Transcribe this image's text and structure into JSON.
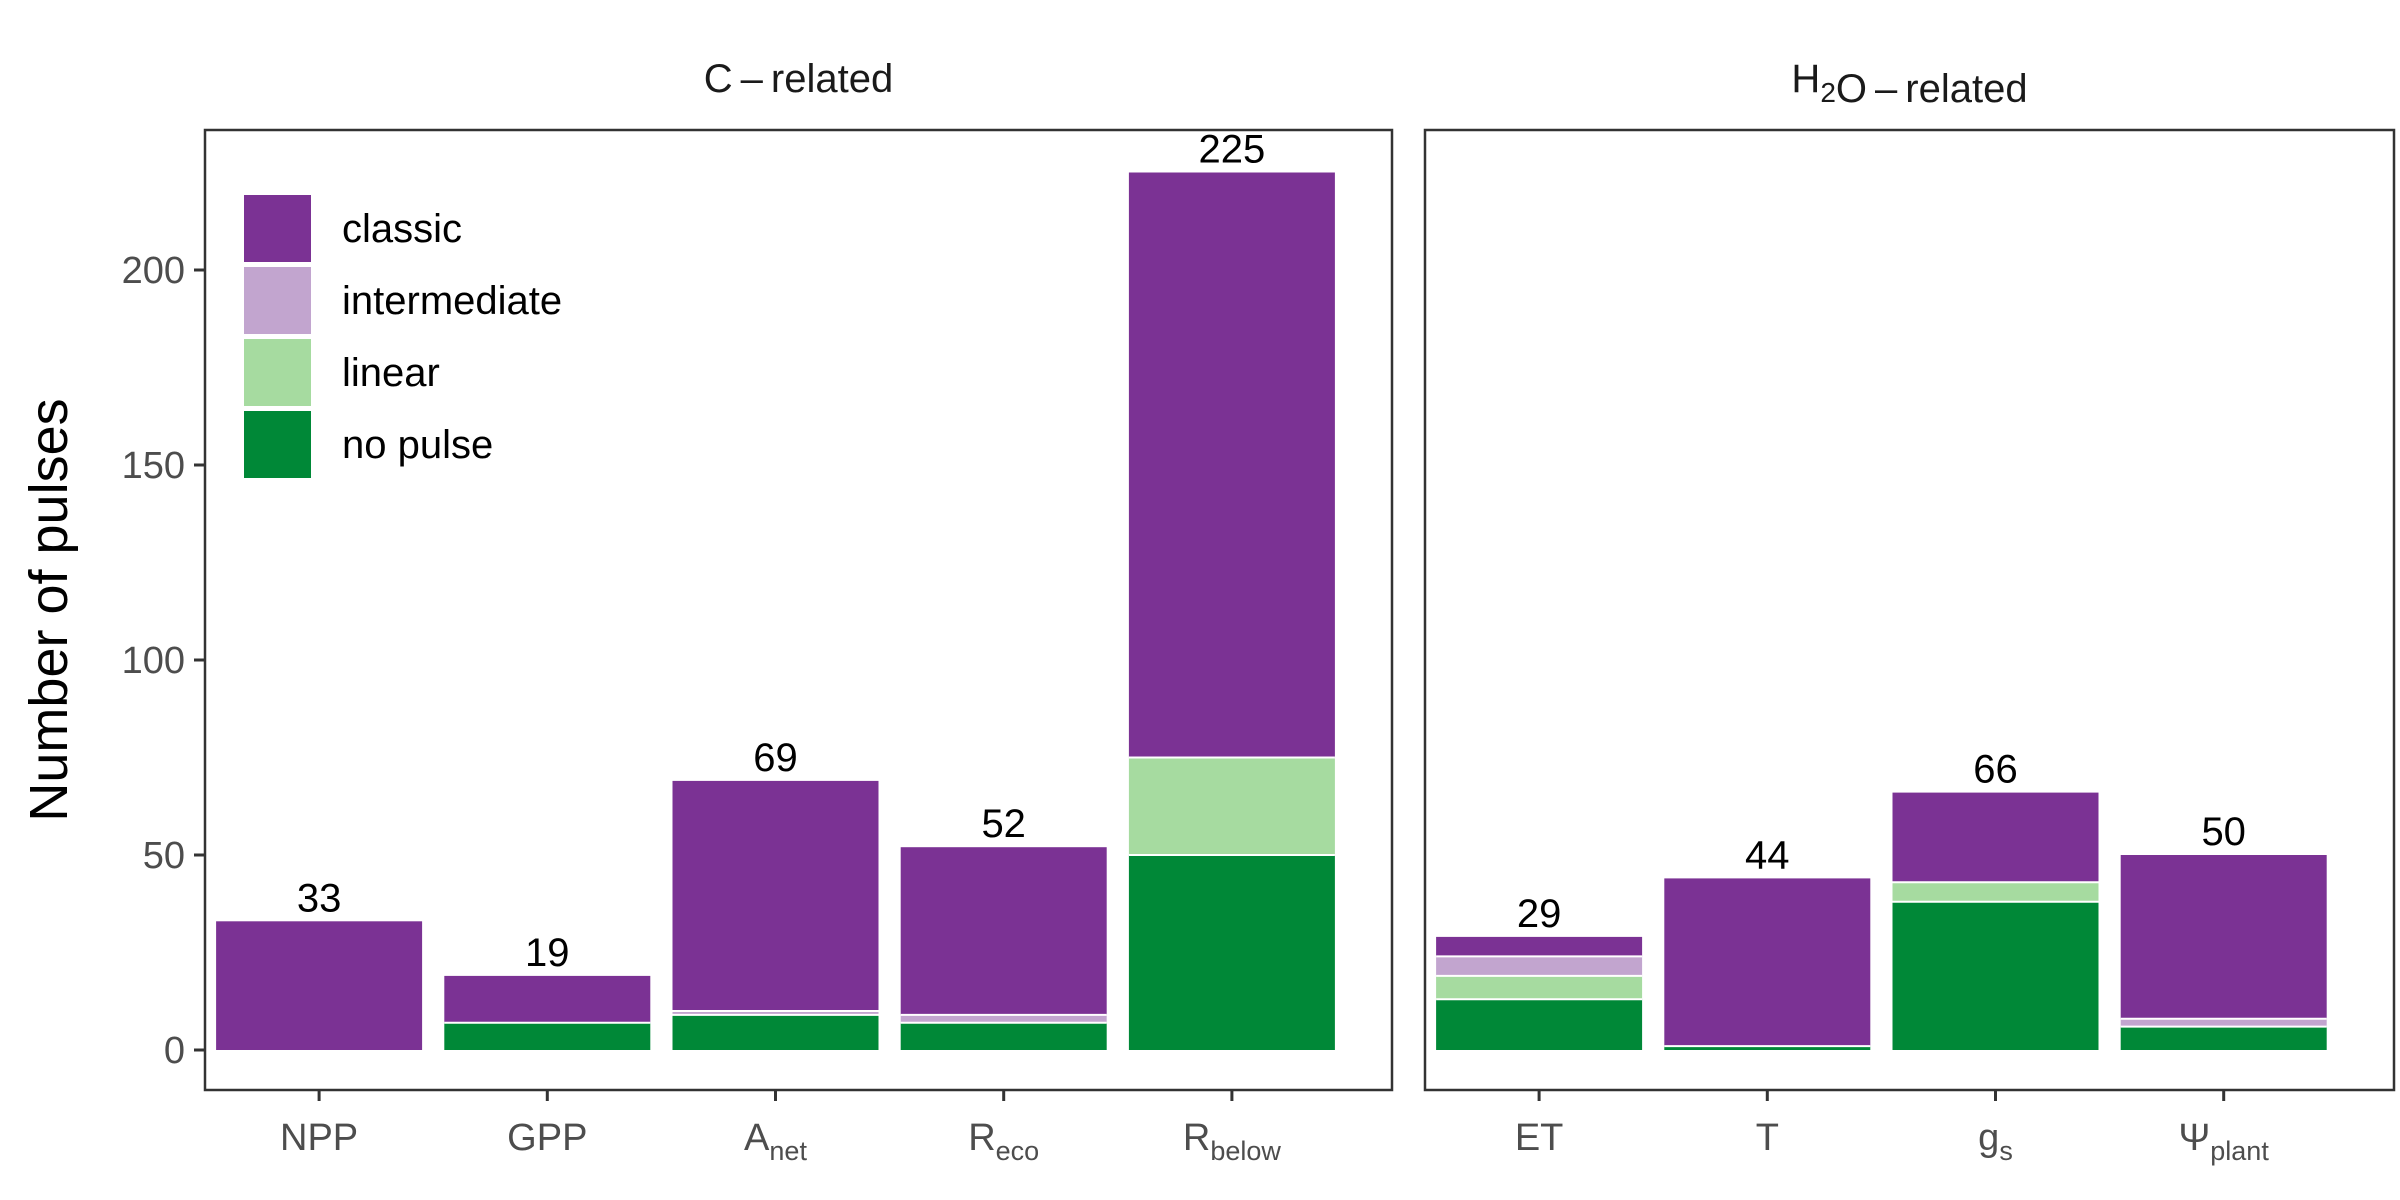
{
  "chart_data": {
    "type": "bar",
    "stacked": true,
    "ylabel": "Number of pulses",
    "ylim": [
      0,
      235
    ],
    "yticks": [
      0,
      50,
      100,
      150,
      200
    ],
    "legend_placement": "top-left",
    "grid": false,
    "stack_order": [
      "no pulse",
      "linear",
      "intermediate",
      "classic"
    ],
    "legend_entries": [
      {
        "name": "classic",
        "color": "#7b3294"
      },
      {
        "name": "intermediate",
        "color": "#c2a5cf"
      },
      {
        "name": "linear",
        "color": "#a6dba0"
      },
      {
        "name": "no pulse",
        "color": "#008837"
      }
    ],
    "facets": [
      {
        "title_parts": [
          {
            "text": "C – related",
            "sub": ""
          }
        ],
        "bars": [
          {
            "label": "NPP",
            "sub": "",
            "total": "33",
            "values": {
              "no pulse": 0,
              "linear": 0,
              "intermediate": 0,
              "classic": 33
            }
          },
          {
            "label": "GPP",
            "sub": "",
            "total": "19",
            "values": {
              "no pulse": 7,
              "linear": 0,
              "intermediate": 0,
              "classic": 12
            }
          },
          {
            "label": "A",
            "sub": "net",
            "total": "69",
            "values": {
              "no pulse": 9,
              "linear": 0,
              "intermediate": 1,
              "classic": 59
            }
          },
          {
            "label": "R",
            "sub": "eco",
            "total": "52",
            "values": {
              "no pulse": 7,
              "linear": 0,
              "intermediate": 2,
              "classic": 43
            }
          },
          {
            "label": "R",
            "sub": "below",
            "total": "225",
            "values": {
              "no pulse": 50,
              "linear": 25,
              "intermediate": 0,
              "classic": 150
            }
          }
        ]
      },
      {
        "title_parts": [
          {
            "text": "H",
            "sub": "2"
          },
          {
            "text": "O – related",
            "sub": ""
          }
        ],
        "bars": [
          {
            "label": "ET",
            "sub": "",
            "total": "29",
            "values": {
              "no pulse": 13,
              "linear": 6,
              "intermediate": 5,
              "classic": 5
            }
          },
          {
            "label": "T",
            "sub": "",
            "total": "44",
            "values": {
              "no pulse": 1,
              "linear": 0,
              "intermediate": 0,
              "classic": 43
            }
          },
          {
            "label": "g",
            "sub": "s",
            "total": "66",
            "values": {
              "no pulse": 38,
              "linear": 5,
              "intermediate": 0,
              "classic": 23
            }
          },
          {
            "label": "Ψ",
            "sub": "plant",
            "total": "50",
            "values": {
              "no pulse": 6,
              "linear": 0,
              "intermediate": 2,
              "classic": 42
            }
          }
        ]
      }
    ]
  }
}
